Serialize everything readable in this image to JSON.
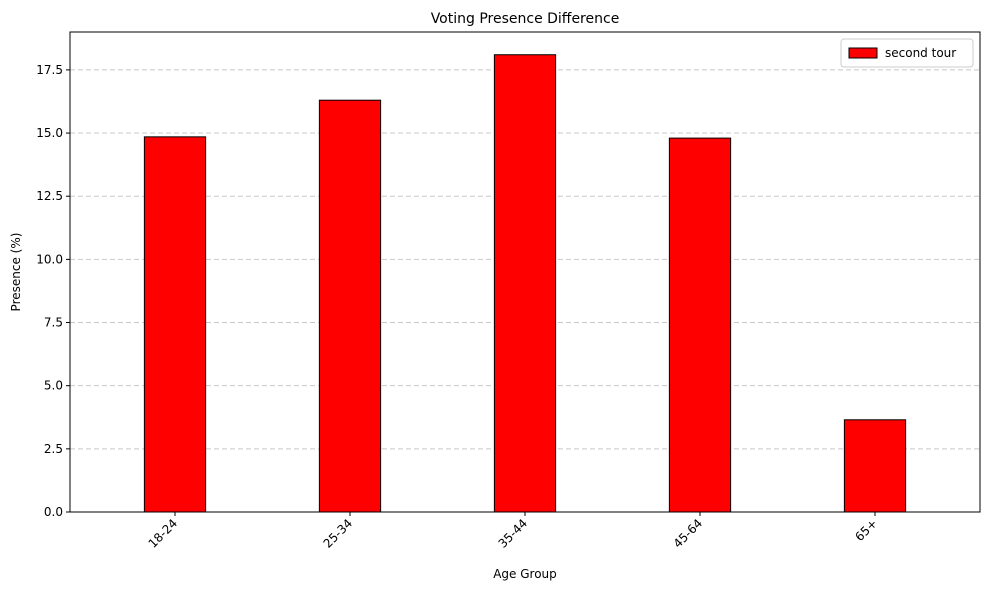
{
  "chart_data": {
    "type": "bar",
    "title": "Voting Presence Difference",
    "xlabel": "Age Group",
    "ylabel": "Presence (%)",
    "categories": [
      "18-24",
      "25-34",
      "35-44",
      "45-64",
      "65+"
    ],
    "series": [
      {
        "name": "second tour",
        "values": [
          14.85,
          16.3,
          18.1,
          14.8,
          3.65
        ],
        "color": "#ff0000",
        "edge_color": "#000000"
      }
    ],
    "ylim": [
      0,
      19
    ],
    "yticks": [
      0,
      2.5,
      5,
      7.5,
      10,
      12.5,
      15,
      17.5
    ],
    "ytick_labels": [
      "0.0",
      "2.5",
      "5.0",
      "7.5",
      "10.0",
      "12.5",
      "15.0",
      "17.5"
    ],
    "xtick_rotation": 45,
    "grid": "y-dashed",
    "legend_position": "top-right"
  }
}
